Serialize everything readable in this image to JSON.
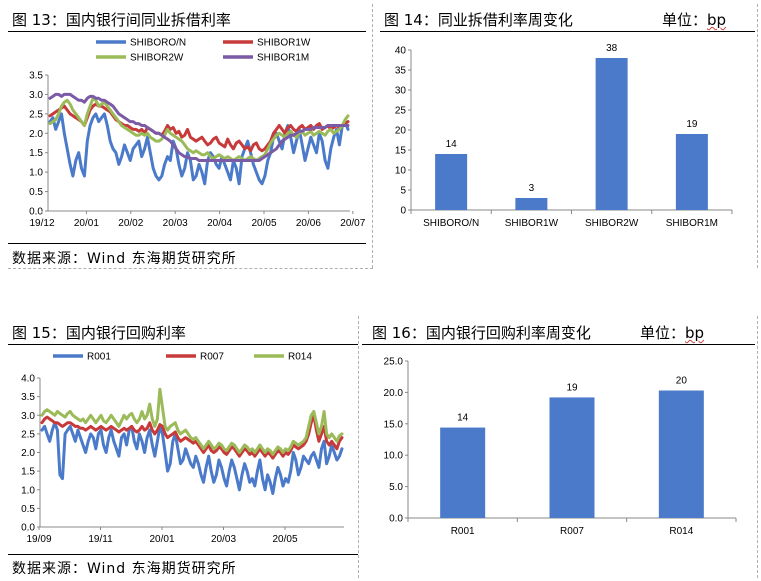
{
  "panels": {
    "fig13": {
      "title": "图 13：国内银行间同业拆借利率",
      "source": "数据来源：Wind  东海期货研究所"
    },
    "fig14": {
      "title": "图 14：同业拆借利率周变化",
      "unit_label": "单位：",
      "unit_value": "bp"
    },
    "fig15": {
      "title": "图 15：国内银行回购利率",
      "source": "数据来源：Wind  东海期货研究所"
    },
    "fig16": {
      "title": "图 16：国内银行回购利率周变化",
      "unit_label": "单位：",
      "unit_value": "bp"
    }
  },
  "chart_data": [
    {
      "id": "fig13",
      "type": "line",
      "title": "国内银行间同业拆借利率",
      "x_ticks": [
        "19/12",
        "20/01",
        "20/02",
        "20/03",
        "20/04",
        "20/05",
        "20/06",
        "20/07"
      ],
      "y_ticks": [
        "0.0",
        "0.5",
        "1.0",
        "1.5",
        "2.0",
        "2.5",
        "3.0",
        "3.5"
      ],
      "ylim": [
        0,
        3.5
      ],
      "legend_position": "top",
      "series": [
        {
          "name": "SHIBORO/N",
          "color": "#4a7ac9",
          "values": [
            2.3,
            2.4,
            2.1,
            2.3,
            2.5,
            2.0,
            1.6,
            1.2,
            0.9,
            1.3,
            1.5,
            1.1,
            0.9,
            1.8,
            2.2,
            2.4,
            2.5,
            2.3,
            2.4,
            2.5,
            2.2,
            1.8,
            1.6,
            1.5,
            1.2,
            1.4,
            1.7,
            1.5,
            1.3,
            1.6,
            1.7,
            1.8,
            1.4,
            1.6,
            1.9,
            1.5,
            1.1,
            0.9,
            0.8,
            0.9,
            1.2,
            1.4,
            1.3,
            1.8,
            1.6,
            1.2,
            0.9,
            1.1,
            1.5,
            1.3,
            0.8,
            0.9,
            1.2,
            1.0,
            0.7,
            1.3,
            1.5,
            1.4,
            1.2,
            1.1,
            1.4,
            1.2,
            1.0,
            0.8,
            1.3,
            1.1,
            0.7,
            1.4,
            1.6,
            1.8,
            1.5,
            1.2,
            1.0,
            0.8,
            0.7,
            0.9,
            1.3,
            1.5,
            1.9,
            2.0,
            1.8,
            1.6,
            2.0,
            2.2,
            1.9,
            1.5,
            1.8,
            2.1,
            1.7,
            1.3,
            1.6,
            1.9,
            1.7,
            1.5,
            2.0,
            1.8,
            1.3,
            1.1,
            1.6,
            1.9,
            2.1,
            1.7,
            2.2,
            2.3,
            2.1
          ]
        },
        {
          "name": "SHIBOR1W",
          "color": "#c83a3a",
          "values": [
            2.45,
            2.5,
            2.55,
            2.6,
            2.65,
            2.7,
            2.6,
            2.5,
            2.45,
            2.4,
            2.35,
            2.3,
            2.2,
            2.4,
            2.6,
            2.7,
            2.75,
            2.7,
            2.7,
            2.65,
            2.6,
            2.55,
            2.45,
            2.35,
            2.3,
            2.25,
            2.2,
            2.2,
            2.15,
            2.1,
            2.1,
            2.05,
            2.1,
            2.0,
            2.15,
            2.1,
            2.05,
            2.0,
            2.0,
            1.95,
            2.05,
            2.2,
            2.1,
            2.15,
            2.0,
            2.05,
            1.9,
            1.95,
            2.1,
            1.9,
            1.85,
            1.8,
            1.85,
            1.9,
            1.8,
            1.7,
            1.75,
            1.85,
            1.9,
            1.75,
            1.7,
            1.65,
            1.85,
            1.7,
            1.6,
            1.75,
            1.8,
            1.7,
            1.6,
            1.65,
            1.55,
            1.7,
            1.75,
            1.6,
            1.55,
            1.6,
            1.7,
            1.8,
            2.0,
            2.1,
            2.2,
            2.1,
            2.0,
            2.15,
            2.2,
            2.1,
            2.05,
            2.15,
            2.2,
            2.1,
            2.15,
            2.2,
            2.1,
            2.2,
            2.25,
            2.1,
            2.15,
            2.2,
            2.1,
            2.15,
            2.2,
            2.15,
            2.2,
            2.25,
            2.3
          ]
        },
        {
          "name": "SHIBOR2W",
          "color": "#9bbb59",
          "values": [
            2.25,
            2.3,
            2.35,
            2.5,
            2.7,
            2.8,
            2.85,
            2.75,
            2.6,
            2.5,
            2.4,
            2.3,
            2.2,
            2.5,
            2.7,
            2.9,
            2.85,
            2.7,
            2.75,
            2.8,
            2.7,
            2.6,
            2.5,
            2.4,
            2.3,
            2.2,
            2.15,
            2.1,
            2.05,
            2.0,
            1.95,
            1.95,
            2.0,
            1.95,
            2.0,
            1.9,
            1.85,
            1.8,
            1.8,
            1.85,
            1.95,
            2.1,
            2.0,
            1.95,
            1.9,
            1.85,
            1.8,
            1.7,
            1.6,
            1.55,
            1.5,
            1.55,
            1.5,
            1.45,
            1.45,
            1.5,
            1.4,
            1.35,
            1.4,
            1.45,
            1.4,
            1.35,
            1.4,
            1.35,
            1.3,
            1.35,
            1.4,
            1.35,
            1.3,
            1.35,
            1.4,
            1.35,
            1.3,
            1.35,
            1.4,
            1.45,
            1.6,
            1.75,
            1.85,
            1.95,
            2.0,
            1.95,
            1.9,
            2.0,
            2.05,
            1.95,
            1.9,
            2.0,
            2.05,
            1.95,
            2.0,
            2.05,
            1.95,
            2.0,
            2.05,
            2.0,
            1.95,
            2.05,
            2.1,
            2.0,
            2.05,
            2.1,
            2.2,
            2.35,
            2.45
          ]
        },
        {
          "name": "SHIBOR1M",
          "color": "#7b5aa6",
          "values": [
            2.9,
            2.95,
            3.0,
            3.0,
            2.95,
            3.0,
            3.0,
            3.0,
            2.95,
            2.9,
            2.85,
            2.85,
            2.8,
            2.9,
            2.95,
            2.95,
            2.9,
            2.9,
            2.85,
            2.85,
            2.8,
            2.75,
            2.7,
            2.6,
            2.5,
            2.45,
            2.4,
            2.35,
            2.3,
            2.3,
            2.25,
            2.25,
            2.2,
            2.2,
            2.15,
            2.1,
            2.05,
            2.0,
            2.0,
            1.95,
            1.9,
            1.85,
            1.8,
            1.7,
            1.6,
            1.5,
            1.45,
            1.4,
            1.4,
            1.35,
            1.35,
            1.35,
            1.3,
            1.3,
            1.3,
            1.3,
            1.3,
            1.3,
            1.3,
            1.3,
            1.3,
            1.3,
            1.3,
            1.3,
            1.3,
            1.3,
            1.3,
            1.3,
            1.3,
            1.3,
            1.3,
            1.3,
            1.3,
            1.3,
            1.35,
            1.4,
            1.45,
            1.5,
            1.55,
            1.6,
            1.7,
            1.8,
            1.85,
            1.9,
            1.95,
            1.95,
            2.0,
            2.05,
            2.05,
            2.1,
            2.1,
            2.1,
            2.15,
            2.15,
            2.15,
            2.15,
            2.15,
            2.2,
            2.2,
            2.2,
            2.2,
            2.2,
            2.2,
            2.2,
            2.2
          ]
        }
      ]
    },
    {
      "id": "fig14",
      "type": "bar",
      "title": "同业拆借利率周变化",
      "categories": [
        "SHIBORO/N",
        "SHIBOR1W",
        "SHIBOR2W",
        "SHIBOR1M"
      ],
      "values": [
        14,
        3,
        38,
        19
      ],
      "data_labels": [
        "14",
        "3",
        "38",
        "19"
      ],
      "y_ticks": [
        "0",
        "5",
        "10",
        "15",
        "20",
        "25",
        "30",
        "35",
        "40"
      ],
      "ylim": [
        0,
        40
      ],
      "color": "#4a7ac9"
    },
    {
      "id": "fig15",
      "type": "line",
      "title": "国内银行回购利率",
      "x_ticks": [
        "19/09",
        "19/11",
        "20/01",
        "20/03",
        "20/05"
      ],
      "y_ticks": [
        "0.0",
        "0.5",
        "1.0",
        "1.5",
        "2.0",
        "2.5",
        "3.0",
        "3.5",
        "4.0"
      ],
      "ylim": [
        0,
        4.0
      ],
      "legend_position": "top",
      "series": [
        {
          "name": "R001",
          "color": "#4a7ac9",
          "values": [
            2.6,
            2.7,
            2.5,
            2.3,
            2.6,
            2.8,
            2.6,
            1.4,
            1.3,
            2.5,
            2.6,
            2.7,
            2.5,
            2.3,
            2.6,
            2.4,
            2.2,
            2.0,
            2.3,
            2.5,
            2.4,
            2.1,
            2.5,
            2.6,
            2.2,
            2.0,
            2.4,
            2.6,
            2.3,
            2.1,
            1.9,
            2.4,
            2.5,
            2.2,
            2.6,
            2.7,
            2.3,
            2.1,
            2.5,
            2.3,
            2.0,
            2.4,
            2.6,
            2.2,
            1.9,
            2.3,
            2.7,
            2.5,
            2.0,
            1.5,
            1.7,
            2.3,
            2.5,
            2.1,
            1.7,
            1.8,
            2.1,
            1.9,
            1.7,
            1.6,
            1.9,
            1.7,
            1.4,
            1.2,
            1.6,
            1.9,
            1.5,
            1.2,
            1.4,
            1.8,
            1.6,
            1.3,
            1.1,
            1.5,
            1.8,
            1.6,
            1.3,
            1.0,
            1.4,
            1.7,
            1.5,
            1.2,
            1.3,
            1.1,
            1.5,
            1.8,
            1.3,
            1.0,
            1.4,
            1.2,
            0.9,
            1.3,
            1.6,
            1.4,
            1.1,
            1.3,
            1.2,
            1.5,
            2.0,
            1.8,
            1.4,
            1.6,
            1.9,
            1.8,
            1.7,
            1.9,
            2.0,
            1.8,
            1.6,
            2.1,
            2.3,
            1.7,
            1.9,
            2.2,
            2.0,
            1.8,
            1.9,
            2.1
          ]
        },
        {
          "name": "R007",
          "color": "#c83a3a",
          "values": [
            2.8,
            2.9,
            2.95,
            2.9,
            2.85,
            2.8,
            2.8,
            2.75,
            2.7,
            2.75,
            2.8,
            2.8,
            2.75,
            2.7,
            2.7,
            2.65,
            2.65,
            2.6,
            2.65,
            2.7,
            2.65,
            2.6,
            2.65,
            2.7,
            2.65,
            2.6,
            2.65,
            2.7,
            2.65,
            2.6,
            2.55,
            2.6,
            2.65,
            2.6,
            2.65,
            2.7,
            2.6,
            2.55,
            2.6,
            2.7,
            2.6,
            2.65,
            2.8,
            2.6,
            2.5,
            2.6,
            2.75,
            2.7,
            2.5,
            2.4,
            2.45,
            2.5,
            2.55,
            2.4,
            2.3,
            2.35,
            2.4,
            2.35,
            2.3,
            2.25,
            2.3,
            2.2,
            2.1,
            2.0,
            2.1,
            2.2,
            2.05,
            2.0,
            2.05,
            2.15,
            2.1,
            2.0,
            1.95,
            2.05,
            2.15,
            2.1,
            2.0,
            1.9,
            2.0,
            2.1,
            2.05,
            1.95,
            2.0,
            1.9,
            2.0,
            2.1,
            2.0,
            1.9,
            2.0,
            1.95,
            1.85,
            1.95,
            2.05,
            2.0,
            1.9,
            2.0,
            1.95,
            2.05,
            2.2,
            2.15,
            2.1,
            2.15,
            2.2,
            2.3,
            2.5,
            2.8,
            3.0,
            2.6,
            2.3,
            2.5,
            2.7,
            2.3,
            2.2,
            2.3,
            2.2,
            2.1,
            2.3,
            2.4
          ]
        },
        {
          "name": "R014",
          "color": "#9bbb59",
          "values": [
            3.0,
            3.1,
            3.15,
            3.1,
            3.05,
            3.0,
            3.1,
            3.05,
            3.0,
            2.95,
            3.05,
            3.1,
            3.0,
            2.95,
            2.9,
            2.85,
            2.9,
            2.8,
            2.9,
            3.0,
            2.9,
            2.8,
            2.9,
            3.0,
            2.85,
            2.8,
            2.9,
            3.0,
            2.9,
            2.8,
            2.7,
            2.85,
            3.0,
            2.9,
            3.0,
            3.05,
            2.9,
            2.8,
            2.9,
            3.1,
            2.9,
            3.0,
            3.3,
            2.9,
            2.7,
            2.9,
            3.7,
            3.2,
            2.7,
            2.6,
            2.7,
            2.75,
            2.8,
            2.6,
            2.5,
            2.55,
            2.6,
            2.5,
            2.4,
            2.35,
            2.4,
            2.3,
            2.2,
            2.1,
            2.2,
            2.3,
            2.2,
            2.1,
            2.15,
            2.25,
            2.2,
            2.1,
            2.05,
            2.15,
            2.25,
            2.2,
            2.1,
            2.0,
            2.1,
            2.2,
            2.15,
            2.05,
            2.1,
            2.0,
            2.1,
            2.2,
            2.1,
            2.0,
            2.1,
            2.05,
            1.95,
            2.05,
            2.15,
            2.1,
            2.0,
            2.1,
            2.05,
            2.15,
            2.3,
            2.25,
            2.2,
            2.25,
            2.3,
            2.4,
            2.7,
            3.0,
            3.1,
            2.8,
            2.5,
            2.7,
            3.1,
            2.5,
            2.4,
            2.5,
            2.4,
            2.3,
            2.45,
            2.5
          ]
        }
      ]
    },
    {
      "id": "fig16",
      "type": "bar",
      "title": "国内银行回购利率周变化",
      "categories": [
        "R001",
        "R007",
        "R014"
      ],
      "values": [
        14.4,
        19.2,
        20.3
      ],
      "data_labels": [
        "14",
        "19",
        "20"
      ],
      "y_ticks": [
        "0.0",
        "5.0",
        "10.0",
        "15.0",
        "20.0",
        "25.0"
      ],
      "ylim": [
        0,
        25
      ],
      "color": "#4a7ac9"
    }
  ]
}
